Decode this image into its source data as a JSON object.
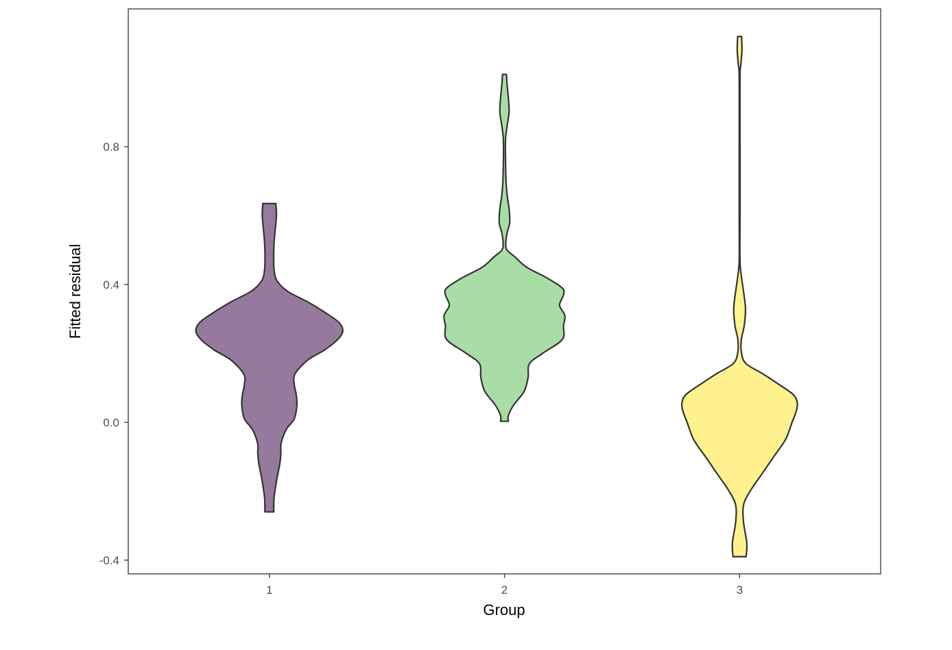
{
  "chart_data": {
    "type": "violin",
    "xlabel": "Group",
    "ylabel": "Fitted residual",
    "categories": [
      "1",
      "2",
      "3"
    ],
    "ylim": [
      -0.44,
      1.2
    ],
    "yticks": [
      -0.4,
      0.0,
      0.4,
      0.8
    ],
    "ytick_labels": [
      "-0.4",
      "0.0",
      "0.4",
      "0.8"
    ],
    "grid": false,
    "legend": "none",
    "series": [
      {
        "category": "1",
        "color": "#967A9E",
        "min": -0.26,
        "max": 0.635,
        "profile": [
          [
            -0.26,
            0.034
          ],
          [
            -0.22,
            0.036
          ],
          [
            -0.17,
            0.055
          ],
          [
            -0.12,
            0.08
          ],
          [
            -0.09,
            0.088
          ],
          [
            -0.06,
            0.09
          ],
          [
            -0.02,
            0.13
          ],
          [
            0.01,
            0.19
          ],
          [
            0.05,
            0.21
          ],
          [
            0.08,
            0.205
          ],
          [
            0.11,
            0.19
          ],
          [
            0.14,
            0.195
          ],
          [
            0.18,
            0.29
          ],
          [
            0.21,
            0.42
          ],
          [
            0.24,
            0.52
          ],
          [
            0.265,
            0.56
          ],
          [
            0.29,
            0.53
          ],
          [
            0.32,
            0.42
          ],
          [
            0.35,
            0.29
          ],
          [
            0.38,
            0.14
          ],
          [
            0.41,
            0.06
          ],
          [
            0.44,
            0.037
          ],
          [
            0.48,
            0.033
          ],
          [
            0.52,
            0.036
          ],
          [
            0.56,
            0.045
          ],
          [
            0.6,
            0.054
          ],
          [
            0.635,
            0.05
          ]
        ]
      },
      {
        "category": "2",
        "color": "#A8DEA6",
        "min": 0.003,
        "max": 1.01,
        "profile": [
          [
            0.003,
            0.03
          ],
          [
            0.02,
            0.03
          ],
          [
            0.05,
            0.07
          ],
          [
            0.09,
            0.15
          ],
          [
            0.13,
            0.18
          ],
          [
            0.17,
            0.19
          ],
          [
            0.2,
            0.29
          ],
          [
            0.24,
            0.44
          ],
          [
            0.28,
            0.45
          ],
          [
            0.31,
            0.46
          ],
          [
            0.34,
            0.42
          ],
          [
            0.37,
            0.45
          ],
          [
            0.39,
            0.44
          ],
          [
            0.42,
            0.32
          ],
          [
            0.45,
            0.17
          ],
          [
            0.48,
            0.08
          ],
          [
            0.5,
            0.02
          ],
          [
            0.52,
            0.01
          ],
          [
            0.55,
            0.02
          ],
          [
            0.58,
            0.04
          ],
          [
            0.62,
            0.035
          ],
          [
            0.66,
            0.02
          ],
          [
            0.7,
            0.012
          ],
          [
            0.76,
            0.008
          ],
          [
            0.82,
            0.008
          ],
          [
            0.86,
            0.02
          ],
          [
            0.9,
            0.035
          ],
          [
            0.94,
            0.03
          ],
          [
            0.98,
            0.02
          ],
          [
            1.01,
            0.015
          ]
        ]
      },
      {
        "category": "3",
        "color": "#FFF28E",
        "min": -0.39,
        "max": 1.12,
        "profile": [
          [
            -0.39,
            0.05
          ],
          [
            -0.35,
            0.055
          ],
          [
            -0.29,
            0.03
          ],
          [
            -0.24,
            0.03
          ],
          [
            -0.2,
            0.08
          ],
          [
            -0.15,
            0.17
          ],
          [
            -0.1,
            0.26
          ],
          [
            -0.05,
            0.35
          ],
          [
            0.0,
            0.4
          ],
          [
            0.03,
            0.43
          ],
          [
            0.055,
            0.44
          ],
          [
            0.08,
            0.41
          ],
          [
            0.11,
            0.3
          ],
          [
            0.14,
            0.18
          ],
          [
            0.17,
            0.05
          ],
          [
            0.2,
            0.015
          ],
          [
            0.24,
            0.013
          ],
          [
            0.28,
            0.035
          ],
          [
            0.33,
            0.045
          ],
          [
            0.38,
            0.03
          ],
          [
            0.42,
            0.015
          ],
          [
            0.47,
            0.003
          ],
          [
            0.6,
            0.003
          ],
          [
            0.8,
            0.003
          ],
          [
            1.0,
            0.003
          ],
          [
            1.04,
            0.01
          ],
          [
            1.08,
            0.018
          ],
          [
            1.12,
            0.015
          ]
        ]
      }
    ]
  }
}
